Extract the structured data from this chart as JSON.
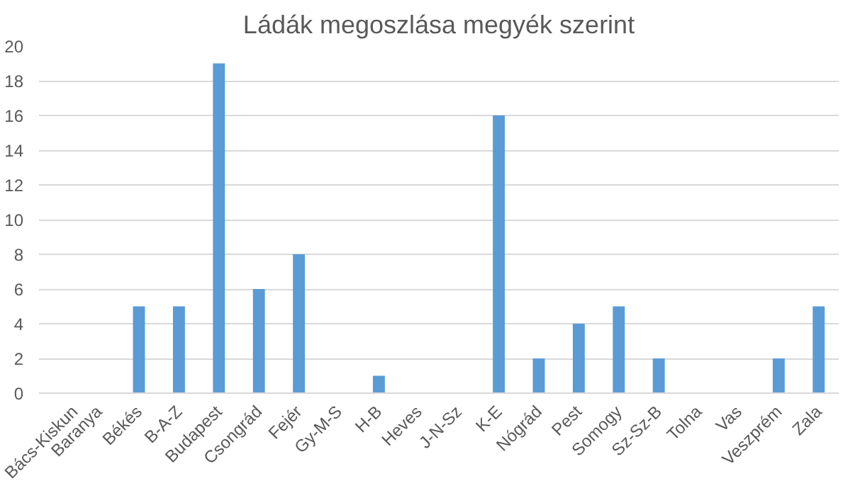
{
  "chart_data": {
    "type": "bar",
    "title": "Ládák megoszlása megyék szerint",
    "categories": [
      "Bács-Kiskun",
      "Baranya",
      "Békés",
      "B-A-Z",
      "Budapest",
      "Csongrád",
      "Fejér",
      "Gy-M-S",
      "H-B",
      "Heves",
      "J-N-Sz",
      "K-E",
      "Nógrád",
      "Pest",
      "Somogy",
      "Sz-Sz-B",
      "Tolna",
      "Vas",
      "Veszprém",
      "Zala"
    ],
    "values": [
      0,
      0,
      5,
      5,
      19,
      6,
      8,
      0,
      1,
      0,
      0,
      16,
      2,
      4,
      5,
      2,
      0,
      0,
      2,
      5
    ],
    "color": "#5b9bd5",
    "ylim": [
      0,
      20
    ],
    "yticks": [
      0,
      2,
      4,
      6,
      8,
      10,
      12,
      14,
      16,
      18,
      20
    ],
    "grid": "y"
  }
}
